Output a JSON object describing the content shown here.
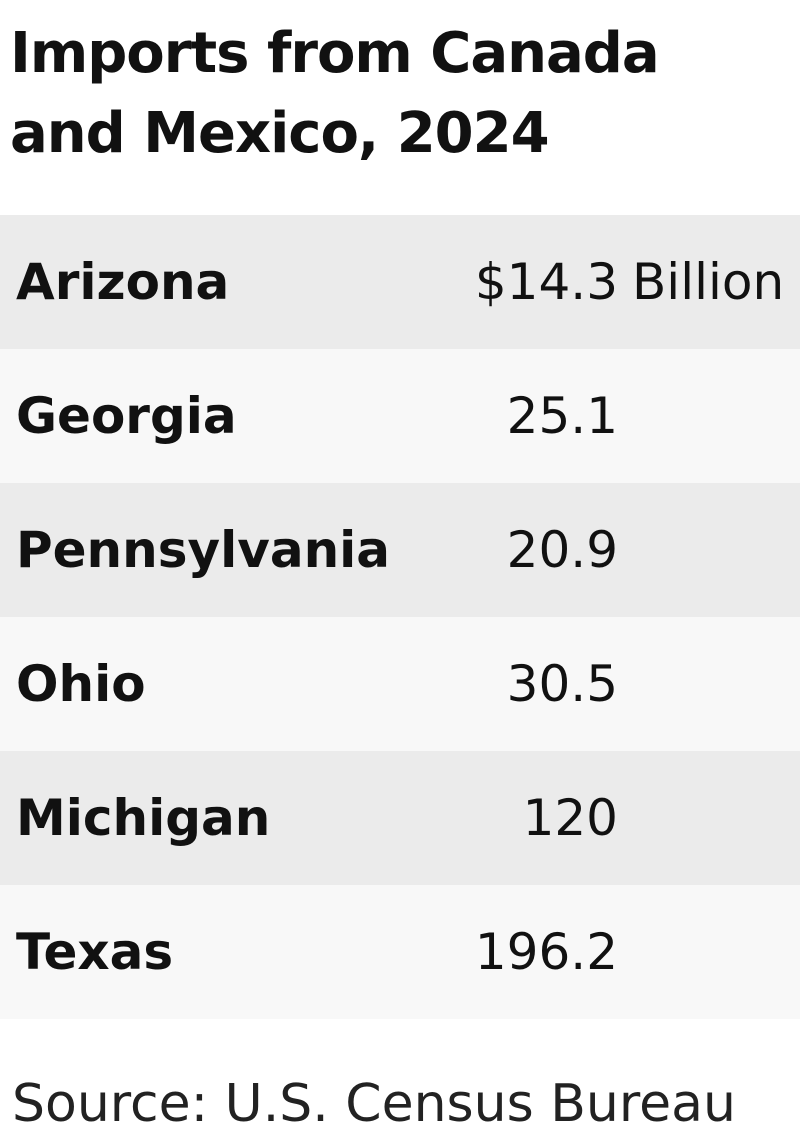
{
  "chart_data": {
    "type": "table",
    "title": "Imports from Canada and Mexico, 2024",
    "unit_prefix": "$",
    "unit_suffix": "Billion",
    "rows": [
      {
        "state": "Arizona",
        "value": "14.3"
      },
      {
        "state": "Georgia",
        "value": "25.1"
      },
      {
        "state": "Pennsylvania",
        "value": "20.9"
      },
      {
        "state": "Ohio",
        "value": "30.5"
      },
      {
        "state": "Michigan",
        "value": "120"
      },
      {
        "state": "Texas",
        "value": "196.2"
      }
    ],
    "source": "Source: U.S. Census Bureau"
  },
  "colors": {
    "row_odd": "#ebebeb",
    "row_even": "#f8f8f8",
    "text": "#111111"
  }
}
